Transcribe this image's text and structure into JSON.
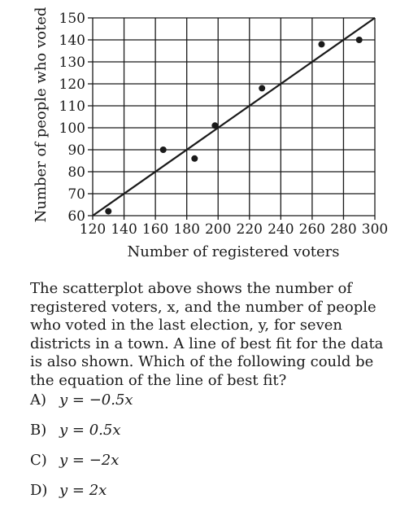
{
  "chart_data": {
    "type": "scatter",
    "xlabel": "Number of registered voters",
    "ylabel": "Number of people who voted",
    "xlim": [
      120,
      300
    ],
    "ylim": [
      60,
      150
    ],
    "x_ticks": [
      120,
      140,
      160,
      180,
      200,
      220,
      240,
      260,
      280,
      300
    ],
    "y_ticks": [
      60,
      70,
      80,
      90,
      100,
      110,
      120,
      130,
      140,
      150
    ],
    "grid": true,
    "points": [
      {
        "x": 130,
        "y": 62
      },
      {
        "x": 165,
        "y": 90
      },
      {
        "x": 185,
        "y": 86
      },
      {
        "x": 198,
        "y": 101
      },
      {
        "x": 228,
        "y": 118
      },
      {
        "x": 266,
        "y": 138
      },
      {
        "x": 290,
        "y": 140
      }
    ],
    "best_fit_line": {
      "x": [
        120,
        300
      ],
      "y": [
        60,
        150
      ]
    }
  },
  "question": {
    "text": "The scatterplot above shows the number of registered voters, x, and the number of people who voted in the last election, y, for seven districts in a town. A line of best fit for the data is also shown. Which of the following could be the equation of the line of best fit?"
  },
  "choices": [
    {
      "letter": "A)",
      "equation": "y = −0.5x"
    },
    {
      "letter": "B)",
      "equation": "y = 0.5x"
    },
    {
      "letter": "C)",
      "equation": "y = −2x"
    },
    {
      "letter": "D)",
      "equation": "y = 2x"
    }
  ]
}
